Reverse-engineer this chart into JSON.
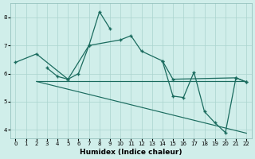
{
  "xlabel": "Humidex (Indice chaleur)",
  "color": "#1a6b5e",
  "bg_color": "#d0eeea",
  "grid_color": "#aad4ce",
  "ylim": [
    3.7,
    8.5
  ],
  "xlim": [
    -0.5,
    22.5
  ],
  "yticks": [
    4,
    5,
    6,
    7,
    8
  ],
  "xticks": [
    0,
    1,
    2,
    3,
    4,
    5,
    6,
    7,
    8,
    9,
    10,
    11,
    12,
    13,
    14,
    15,
    16,
    17,
    18,
    19,
    20,
    21,
    22
  ],
  "line1_x": [
    0,
    2,
    5,
    7,
    10,
    11,
    12,
    14,
    15,
    21,
    22
  ],
  "line1_y": [
    6.4,
    6.7,
    5.8,
    7.0,
    7.2,
    7.35,
    6.8,
    6.45,
    5.8,
    5.85,
    5.7
  ],
  "line2_x": [
    3,
    4,
    5,
    6,
    7,
    8,
    9
  ],
  "line2_y": [
    6.2,
    5.9,
    5.8,
    6.0,
    7.0,
    8.2,
    7.6
  ],
  "line3_x": [
    14,
    15,
    16,
    17,
    18,
    19,
    20,
    21,
    22
  ],
  "line3_y": [
    6.45,
    5.2,
    5.15,
    6.05,
    4.65,
    4.25,
    3.9,
    5.85,
    5.7
  ],
  "trend1_x": [
    2,
    22
  ],
  "trend1_y": [
    5.72,
    5.72
  ],
  "trend2_x": [
    2,
    22
  ],
  "trend2_y": [
    5.72,
    3.88
  ]
}
